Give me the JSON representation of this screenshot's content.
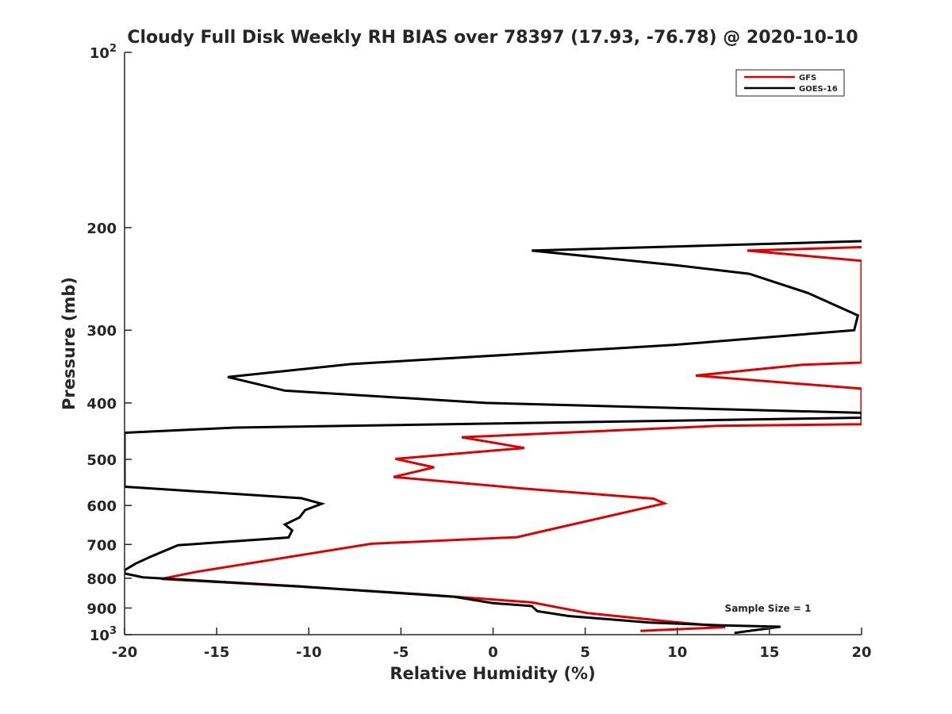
{
  "chart_data": {
    "type": "line",
    "title": "Cloudy Full Disk Weekly RH BIAS over 78397 (17.93, -76.78) @ 2020-10-10",
    "xlabel": "Relative Humidity (%)",
    "ylabel": "Pressure (mb)",
    "xlim": [
      -20,
      20
    ],
    "ylim": [
      100,
      1000
    ],
    "yscale": "log",
    "y_reversed": true,
    "xticks": [
      -20,
      -15,
      -10,
      -5,
      0,
      5,
      10,
      15,
      20
    ],
    "xtick_labels": [
      "-20",
      "-15",
      "-10",
      "-5",
      "0",
      "5",
      "10",
      "15",
      "20"
    ],
    "yticks": [
      {
        "value": 100,
        "base": "10",
        "exp": "2"
      },
      {
        "value": 200,
        "label": "200"
      },
      {
        "value": 300,
        "label": "300"
      },
      {
        "value": 400,
        "label": "400"
      },
      {
        "value": 500,
        "label": "500"
      },
      {
        "value": 600,
        "label": "600"
      },
      {
        "value": 700,
        "label": "700"
      },
      {
        "value": 800,
        "label": "800"
      },
      {
        "value": 900,
        "label": "900"
      },
      {
        "value": 1000,
        "base": "10",
        "exp": "3"
      }
    ],
    "grid": false,
    "legend_position": "top-right",
    "annotation": "Sample Size = 1",
    "series": [
      {
        "name": "GFS",
        "color": "#e00000",
        "points": [
          [
            20,
            216
          ],
          [
            13.8,
            219
          ],
          [
            20,
            228
          ],
          [
            20,
            341
          ],
          [
            16.8,
            344
          ],
          [
            11.0,
            359
          ],
          [
            20,
            378
          ],
          [
            20,
            435
          ],
          [
            12.2,
            438
          ],
          [
            -1.7,
            458
          ],
          [
            1.7,
            478
          ],
          [
            -5.3,
            499
          ],
          [
            -3.2,
            516
          ],
          [
            -5.4,
            536
          ],
          [
            1.6,
            561
          ],
          [
            8.7,
            584
          ],
          [
            9.3,
            595
          ],
          [
            2.9,
            662
          ],
          [
            1.3,
            680
          ],
          [
            -6.6,
            698
          ],
          [
            -16.1,
            780
          ],
          [
            -18.0,
            802
          ],
          [
            -10.5,
            827
          ],
          [
            -4.0,
            852
          ],
          [
            2.1,
            880
          ],
          [
            5.1,
            918
          ],
          [
            9.8,
            951
          ],
          [
            11.7,
            963
          ],
          [
            12.6,
            971
          ],
          [
            10.9,
            976
          ],
          [
            8.0,
            985
          ]
        ]
      },
      {
        "name": "GOES-16",
        "color": "#000000",
        "points": [
          [
            20,
            211
          ],
          [
            2.1,
            219
          ],
          [
            9.9,
            232
          ],
          [
            13.9,
            240
          ],
          [
            17.1,
            259
          ],
          [
            19.8,
            283
          ],
          [
            19.6,
            300
          ],
          [
            9.8,
            318
          ],
          [
            -7.7,
            343
          ],
          [
            -14.4,
            361
          ],
          [
            -11.3,
            381
          ],
          [
            -0.4,
            400
          ],
          [
            20,
            416
          ],
          [
            20,
            424
          ],
          [
            -14.0,
            441
          ],
          [
            -20,
            450
          ],
          [
            -20,
            557
          ],
          [
            -10.4,
            583
          ],
          [
            -9.3,
            596
          ],
          [
            -10.2,
            611
          ],
          [
            -10.5,
            629
          ],
          [
            -11.3,
            647
          ],
          [
            -10.9,
            662
          ],
          [
            -11.1,
            681
          ],
          [
            -17.1,
            702
          ],
          [
            -18.6,
            735
          ],
          [
            -19.4,
            755
          ],
          [
            -20,
            775
          ],
          [
            -20,
            785
          ],
          [
            -19.0,
            797
          ],
          [
            -10.5,
            826
          ],
          [
            -2.1,
            861
          ],
          [
            0,
            883
          ],
          [
            2.1,
            893
          ],
          [
            2.4,
            911
          ],
          [
            4.1,
            929
          ],
          [
            8.5,
            953
          ],
          [
            12.4,
            964
          ],
          [
            15.6,
            969
          ],
          [
            13.1,
            993
          ]
        ]
      }
    ]
  }
}
